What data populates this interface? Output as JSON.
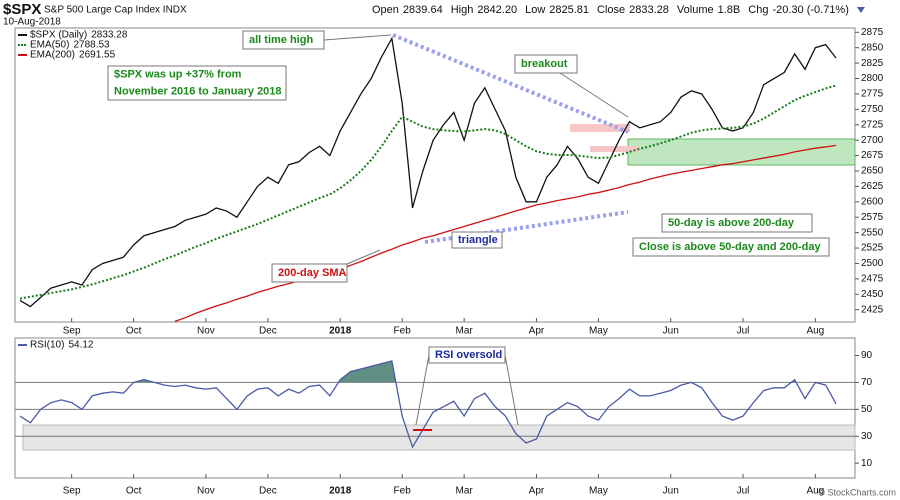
{
  "header": {
    "symbol": "$SPX",
    "name": "S&P 500 Large Cap Index INDX",
    "date": "10-Aug-2018",
    "watermark": "© StockCharts.com",
    "quote": [
      {
        "label": "Open",
        "value": "2839.64"
      },
      {
        "label": "High",
        "value": "2842.20"
      },
      {
        "label": "Low",
        "value": "2825.81"
      },
      {
        "label": "Close",
        "value": "2833.28"
      },
      {
        "label": "Volume",
        "value": "1.8B"
      },
      {
        "label": "Chg",
        "value": "-20.30 (-0.71%)"
      }
    ]
  },
  "chart_data": [
    {
      "type": "line",
      "categories": [
        null,
        null,
        null,
        null,
        null,
        "Sep",
        null,
        null,
        null,
        null,
        null,
        "Oct",
        null,
        null,
        null,
        null,
        null,
        null,
        "Nov",
        null,
        null,
        null,
        null,
        null,
        "Dec",
        null,
        null,
        null,
        null,
        null,
        null,
        "2018",
        null,
        null,
        null,
        null,
        null,
        "Feb",
        null,
        null,
        null,
        null,
        null,
        "Mar",
        null,
        null,
        null,
        null,
        null,
        null,
        "Apr",
        null,
        null,
        null,
        null,
        null,
        "May",
        null,
        null,
        null,
        null,
        null,
        null,
        "Jun",
        null,
        null,
        null,
        null,
        null,
        null,
        "Jul",
        null,
        null,
        null,
        null,
        null,
        null,
        "Aug",
        null,
        null
      ],
      "series": [
        {
          "name": "$SPX (Daily)",
          "color": "#111111",
          "style": "solid",
          "values": [
            2440,
            2430,
            2445,
            2460,
            2465,
            2470,
            2465,
            2490,
            2500,
            2505,
            2510,
            2530,
            2545,
            2550,
            2555,
            2560,
            2570,
            2575,
            2580,
            2590,
            2585,
            2575,
            2600,
            2625,
            2640,
            2630,
            2660,
            2665,
            2680,
            2690,
            2675,
            2715,
            2745,
            2775,
            2800,
            2835,
            2865,
            2760,
            2590,
            2650,
            2700,
            2725,
            2745,
            2700,
            2760,
            2785,
            2750,
            2715,
            2640,
            2600,
            2600,
            2640,
            2660,
            2690,
            2670,
            2640,
            2630,
            2665,
            2700,
            2730,
            2720,
            2725,
            2730,
            2745,
            2770,
            2780,
            2775,
            2750,
            2720,
            2715,
            2720,
            2745,
            2790,
            2800,
            2810,
            2840,
            2815,
            2850,
            2855,
            2833.28
          ]
        },
        {
          "name": "EMA(50)",
          "color": "#1a7a1a",
          "style": "dotted",
          "values": [
            2443,
            2446,
            2449,
            2452,
            2455,
            2458,
            2462,
            2466,
            2471,
            2476,
            2481,
            2487,
            2493,
            2500,
            2507,
            2513,
            2520,
            2527,
            2533,
            2540,
            2546,
            2552,
            2558,
            2564,
            2571,
            2578,
            2585,
            2592,
            2599,
            2606,
            2612,
            2622,
            2635,
            2650,
            2668,
            2690,
            2715,
            2738,
            2730,
            2722,
            2718,
            2716,
            2715,
            2714,
            2716,
            2718,
            2716,
            2710,
            2700,
            2690,
            2682,
            2678,
            2676,
            2676,
            2675,
            2673,
            2671,
            2672,
            2676,
            2681,
            2686,
            2690,
            2695,
            2700,
            2706,
            2712,
            2716,
            2718,
            2719,
            2720,
            2722,
            2727,
            2735,
            2745,
            2755,
            2765,
            2772,
            2778,
            2784,
            2788.53
          ]
        },
        {
          "name": "EMA(200)",
          "color": "#d01010",
          "style": "solid",
          "values": [
            null,
            null,
            null,
            null,
            null,
            null,
            null,
            null,
            null,
            null,
            null,
            null,
            null,
            null,
            null,
            2406,
            2412,
            2419,
            2425,
            2431,
            2436,
            2442,
            2447,
            2453,
            2458,
            2463,
            2467,
            2472,
            2476,
            2481,
            2485,
            2490,
            2497,
            2503,
            2510,
            2517,
            2523,
            2530,
            2535,
            2541,
            2545,
            2550,
            2555,
            2560,
            2565,
            2570,
            2575,
            2580,
            2585,
            2590,
            2595,
            2598,
            2602,
            2605,
            2608,
            2612,
            2615,
            2619,
            2623,
            2628,
            2632,
            2637,
            2641,
            2645,
            2648,
            2651,
            2654,
            2657,
            2660,
            2662,
            2665,
            2668,
            2671,
            2674,
            2677,
            2681,
            2684,
            2687,
            2689,
            2691.55
          ]
        }
      ],
      "ylim": [
        2405,
        2882
      ],
      "yticks": [
        2425,
        2450,
        2475,
        2500,
        2525,
        2550,
        2575,
        2600,
        2625,
        2650,
        2675,
        2700,
        2725,
        2750,
        2775,
        2800,
        2825,
        2850,
        2875
      ],
      "annotations": [
        {
          "lines": [
            "all time high"
          ],
          "color": "#1a8a1a"
        },
        {
          "lines": [
            "$SPX was up +37% from",
            "November 2016 to January 2018"
          ],
          "color": "#1a8a1a"
        },
        {
          "lines": [
            "breakout"
          ],
          "color": "#1a8a1a"
        },
        {
          "lines": [
            "triangle"
          ],
          "color": "#1a2a9a"
        },
        {
          "lines": [
            "200-day SMA"
          ],
          "color": "#d01010"
        },
        {
          "lines": [
            "50-day is above 200-day"
          ],
          "color": "#1a8a1a"
        },
        {
          "lines": [
            "Close is above 50-day and 200-day"
          ],
          "color": "#1a8a1a"
        }
      ]
    },
    {
      "type": "line",
      "categories": [
        null,
        null,
        null,
        null,
        null,
        "Sep",
        null,
        null,
        null,
        null,
        null,
        "Oct",
        null,
        null,
        null,
        null,
        null,
        null,
        "Nov",
        null,
        null,
        null,
        null,
        null,
        "Dec",
        null,
        null,
        null,
        null,
        null,
        null,
        "2018",
        null,
        null,
        null,
        null,
        null,
        "Feb",
        null,
        null,
        null,
        null,
        null,
        "Mar",
        null,
        null,
        null,
        null,
        null,
        null,
        "Apr",
        null,
        null,
        null,
        null,
        null,
        "May",
        null,
        null,
        null,
        null,
        null,
        null,
        "Jun",
        null,
        null,
        null,
        null,
        null,
        null,
        "Jul",
        null,
        null,
        null,
        null,
        null,
        null,
        "Aug",
        null,
        null
      ],
      "series": [
        {
          "name": "RSI(10)",
          "color": "#4a5aa8",
          "style": "solid",
          "values": [
            45,
            40,
            50,
            55,
            57,
            55,
            50,
            60,
            62,
            63,
            62,
            70,
            72,
            70,
            68,
            67,
            68,
            66,
            65,
            66,
            58,
            50,
            60,
            65,
            66,
            60,
            65,
            62,
            67,
            68,
            60,
            72,
            78,
            80,
            82,
            84,
            86,
            45,
            22,
            35,
            48,
            52,
            56,
            45,
            58,
            62,
            52,
            45,
            32,
            25,
            28,
            45,
            50,
            55,
            52,
            45,
            42,
            52,
            58,
            65,
            60,
            60,
            62,
            64,
            68,
            70,
            66,
            55,
            45,
            42,
            45,
            55,
            64,
            66,
            66,
            72,
            58,
            70,
            68,
            54.12
          ]
        }
      ],
      "ylim": [
        -1,
        103
      ],
      "yticks": [
        10,
        30,
        50,
        70,
        90
      ],
      "reference_lines": [
        30,
        50,
        70
      ],
      "fill_above": 70,
      "fill_color": "#5e8f82",
      "annotations": [
        {
          "lines": [
            "RSI oversold"
          ],
          "color": "#1a2a9a"
        }
      ]
    }
  ]
}
